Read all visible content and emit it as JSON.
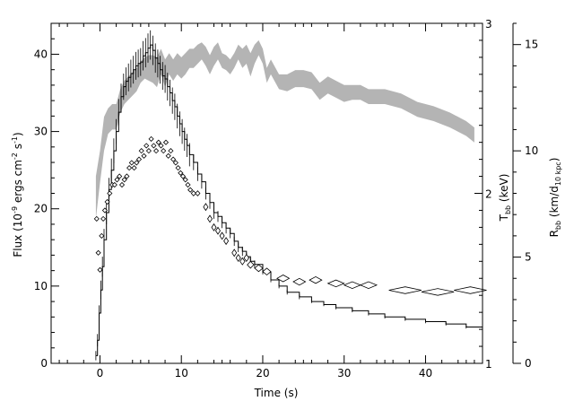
{
  "chart_data": {
    "type": "line",
    "title": "",
    "xlabel": "Time (s)",
    "ylabel": "Flux (10⁻⁹ ergs cm⁻² s⁻¹)",
    "ylabel_parts": {
      "pre": "Flux (10",
      "sup1": "-9",
      "mid1": " ergs cm",
      "sup2": "-2",
      "mid2": " s",
      "sup3": "-1",
      "post": ")"
    },
    "y2label_parts": {
      "pre": "T",
      "sub": "bb",
      "post": " (keV)"
    },
    "y3label_parts": {
      "pre": "R",
      "sub1": "bb",
      "mid": " (km/d",
      "sub2": "10 kpc",
      "post": ")"
    },
    "xlim": [
      -6,
      47
    ],
    "ylim": [
      0,
      44
    ],
    "y2lim": [
      1,
      3
    ],
    "y3lim": [
      0,
      16
    ],
    "xticks": [
      0,
      10,
      20,
      30,
      40
    ],
    "yticks": [
      0,
      10,
      20,
      30,
      40
    ],
    "y2ticks": [
      1,
      2,
      3
    ],
    "y3ticks": [
      0,
      5,
      10,
      15
    ],
    "grid": false,
    "legend": "none",
    "series": [
      {
        "axis": "flux",
        "style": "step-with-errors",
        "x": [
          -0.5,
          -0.3,
          -0.1,
          0.1,
          0.3,
          0.5,
          0.8,
          1.1,
          1.4,
          1.7,
          2.0,
          2.3,
          2.6,
          2.9,
          3.2,
          3.5,
          3.8,
          4.1,
          4.4,
          4.7,
          5.0,
          5.3,
          5.6,
          5.9,
          6.2,
          6.5,
          6.8,
          7.1,
          7.4,
          7.7,
          8.0,
          8.3,
          8.6,
          8.9,
          9.2,
          9.5,
          9.8,
          10.1,
          10.4,
          10.7,
          11.0,
          11.5,
          12.0,
          12.5,
          13.0,
          13.5,
          14.0,
          14.5,
          15.0,
          15.5,
          16.0,
          16.5,
          17.0,
          17.5,
          18.0,
          18.5,
          19.0,
          20.0,
          21.0,
          22.0,
          23.0,
          24.5,
          26.0,
          27.5,
          29.0,
          31.0,
          33.0,
          35.0,
          37.5,
          40.0,
          42.5,
          45.0,
          47.0
        ],
        "y": [
          1.0,
          3.0,
          6.5,
          9.5,
          12.5,
          16.0,
          19.5,
          22.5,
          25.0,
          27.5,
          30.0,
          32.5,
          34.5,
          35.8,
          36.5,
          37.0,
          37.5,
          38.0,
          38.5,
          38.8,
          39.0,
          39.8,
          40.2,
          40.8,
          41.2,
          40.5,
          39.5,
          38.8,
          38.0,
          37.2,
          36.8,
          35.8,
          35.0,
          34.0,
          33.2,
          32.0,
          31.0,
          30.0,
          29.0,
          28.2,
          27.0,
          26.0,
          24.5,
          23.5,
          22.0,
          20.8,
          19.5,
          19.0,
          18.2,
          17.5,
          16.8,
          15.8,
          15.0,
          14.5,
          13.8,
          13.2,
          12.8,
          11.8,
          10.8,
          10.0,
          9.2,
          8.6,
          8.0,
          7.6,
          7.2,
          6.8,
          6.4,
          6.0,
          5.7,
          5.4,
          5.1,
          4.7,
          4.5
        ],
        "err": [
          0.6,
          0.8,
          1.0,
          1.2,
          1.3,
          1.4,
          1.5,
          1.5,
          1.5,
          1.6,
          1.6,
          1.7,
          1.7,
          1.7,
          1.8,
          1.8,
          1.8,
          1.8,
          1.8,
          1.8,
          1.8,
          1.9,
          1.9,
          1.9,
          1.9,
          1.9,
          1.9,
          1.8,
          1.8,
          1.8,
          1.8,
          1.8,
          1.7,
          1.7,
          1.7,
          1.6,
          1.6,
          1.6,
          1.5,
          1.5,
          1.5,
          1.0,
          0.9,
          0.9,
          0.8,
          0.8,
          0.8,
          0.7,
          0.7,
          0.7,
          0.6,
          0.6,
          0.6,
          0.6,
          0.5,
          0.5,
          0.5,
          0.3,
          0.3,
          0.3,
          0.3,
          0.3,
          0.2,
          0.2,
          0.2,
          0.2,
          0.2,
          0.2,
          0.2,
          0.2,
          0.2,
          0.2,
          0.2
        ]
      },
      {
        "axis": "temperature",
        "style": "diamonds",
        "x": [
          -0.4,
          -0.2,
          0.0,
          0.2,
          0.4,
          0.6,
          0.9,
          1.2,
          1.5,
          1.8,
          2.1,
          2.4,
          2.7,
          3.0,
          3.3,
          3.6,
          3.9,
          4.2,
          4.5,
          4.8,
          5.1,
          5.4,
          5.7,
          6.0,
          6.3,
          6.6,
          6.9,
          7.2,
          7.5,
          7.8,
          8.1,
          8.4,
          8.7,
          9.0,
          9.3,
          9.6,
          9.9,
          10.2,
          10.5,
          10.8,
          11.1,
          11.5,
          12.0,
          13.0,
          13.5,
          14.0,
          14.5,
          15.0,
          15.5,
          16.5,
          17.0,
          17.5,
          18.0,
          18.5,
          19.5,
          20.5,
          22.5,
          24.5,
          26.5,
          29.0,
          31.0,
          33.0,
          37.5,
          41.5,
          45.5
        ],
        "y": [
          1.85,
          1.65,
          1.55,
          1.75,
          1.85,
          1.9,
          1.95,
          2.0,
          2.05,
          2.05,
          2.08,
          2.1,
          2.05,
          2.08,
          2.1,
          2.15,
          2.18,
          2.15,
          2.18,
          2.2,
          2.25,
          2.22,
          2.28,
          2.25,
          2.32,
          2.28,
          2.25,
          2.3,
          2.28,
          2.25,
          2.3,
          2.22,
          2.25,
          2.2,
          2.18,
          2.15,
          2.12,
          2.1,
          2.08,
          2.05,
          2.02,
          2.0,
          2.0,
          1.92,
          1.85,
          1.8,
          1.78,
          1.75,
          1.72,
          1.65,
          1.62,
          1.6,
          1.62,
          1.58,
          1.56,
          1.54,
          1.5,
          1.48,
          1.49,
          1.47,
          1.46,
          1.46,
          1.43,
          1.42,
          1.43
        ],
        "xerr": [
          0.1,
          0.1,
          0.1,
          0.1,
          0.1,
          0.1,
          0.15,
          0.15,
          0.15,
          0.15,
          0.15,
          0.15,
          0.15,
          0.15,
          0.15,
          0.15,
          0.15,
          0.15,
          0.15,
          0.15,
          0.15,
          0.15,
          0.15,
          0.15,
          0.15,
          0.15,
          0.15,
          0.15,
          0.15,
          0.15,
          0.15,
          0.15,
          0.15,
          0.15,
          0.15,
          0.15,
          0.15,
          0.15,
          0.15,
          0.15,
          0.15,
          0.25,
          0.25,
          0.25,
          0.25,
          0.25,
          0.25,
          0.25,
          0.25,
          0.25,
          0.25,
          0.3,
          0.3,
          0.4,
          0.5,
          0.5,
          0.75,
          0.75,
          0.75,
          1.0,
          1.0,
          1.0,
          2.0,
          2.0,
          2.0
        ],
        "yerr": [
          0.01,
          0.01,
          0.01,
          0.01,
          0.01,
          0.01,
          0.01,
          0.01,
          0.01,
          0.01,
          0.01,
          0.01,
          0.01,
          0.01,
          0.01,
          0.01,
          0.01,
          0.01,
          0.01,
          0.01,
          0.01,
          0.01,
          0.01,
          0.01,
          0.01,
          0.01,
          0.01,
          0.01,
          0.01,
          0.01,
          0.01,
          0.01,
          0.01,
          0.01,
          0.01,
          0.01,
          0.01,
          0.01,
          0.01,
          0.01,
          0.01,
          0.015,
          0.015,
          0.02,
          0.02,
          0.02,
          0.02,
          0.02,
          0.02,
          0.02,
          0.02,
          0.02,
          0.02,
          0.02,
          0.02,
          0.02,
          0.02,
          0.02,
          0.02,
          0.02,
          0.02,
          0.02,
          0.02,
          0.02,
          0.02
        ]
      },
      {
        "axis": "radius",
        "style": "band",
        "x": [
          -0.5,
          0,
          0.5,
          1,
          1.5,
          2,
          2.5,
          3,
          3.5,
          4,
          4.5,
          5,
          5.5,
          6,
          6.5,
          7,
          7.5,
          8,
          8.5,
          9,
          9.5,
          10,
          10.5,
          11,
          11.5,
          12,
          12.5,
          13,
          13.5,
          14,
          14.5,
          15,
          15.5,
          16,
          16.5,
          17,
          17.5,
          18,
          18.5,
          19,
          19.5,
          20,
          20.5,
          21,
          22,
          23,
          24,
          25,
          26,
          27,
          28,
          29,
          30,
          31,
          32,
          33,
          35,
          37,
          39,
          41,
          43,
          45,
          46
        ],
        "low": [
          6.8,
          8.5,
          10.0,
          10.8,
          11.0,
          11.0,
          11.8,
          12.2,
          12.4,
          12.6,
          12.8,
          13.2,
          13.4,
          13.3,
          13.2,
          13.0,
          13.6,
          13.0,
          13.6,
          13.3,
          13.6,
          13.4,
          13.6,
          13.9,
          13.9,
          14.1,
          14.3,
          14.0,
          13.6,
          14.0,
          14.3,
          13.9,
          13.8,
          13.6,
          13.9,
          14.3,
          13.9,
          14.1,
          13.5,
          14.1,
          14.5,
          14.1,
          13.2,
          13.6,
          12.9,
          12.8,
          13.0,
          13.0,
          12.9,
          12.4,
          12.7,
          12.5,
          12.3,
          12.4,
          12.4,
          12.2,
          12.2,
          12.0,
          11.6,
          11.4,
          11.1,
          10.7,
          10.4
        ],
        "high": [
          8.8,
          10.0,
          11.6,
          12.0,
          12.2,
          12.2,
          12.9,
          13.3,
          13.5,
          13.7,
          13.9,
          14.2,
          14.4,
          14.5,
          14.5,
          14.4,
          14.8,
          14.3,
          14.6,
          14.3,
          14.6,
          14.4,
          14.6,
          14.8,
          14.8,
          15.0,
          15.1,
          14.9,
          14.5,
          14.9,
          15.1,
          14.6,
          14.5,
          14.3,
          14.6,
          15.0,
          14.8,
          15.0,
          14.6,
          15.0,
          15.2,
          14.8,
          13.9,
          14.3,
          13.6,
          13.6,
          13.8,
          13.8,
          13.7,
          13.2,
          13.5,
          13.3,
          13.1,
          13.1,
          13.1,
          12.9,
          12.9,
          12.7,
          12.3,
          12.1,
          11.8,
          11.4,
          11.1
        ]
      }
    ]
  }
}
